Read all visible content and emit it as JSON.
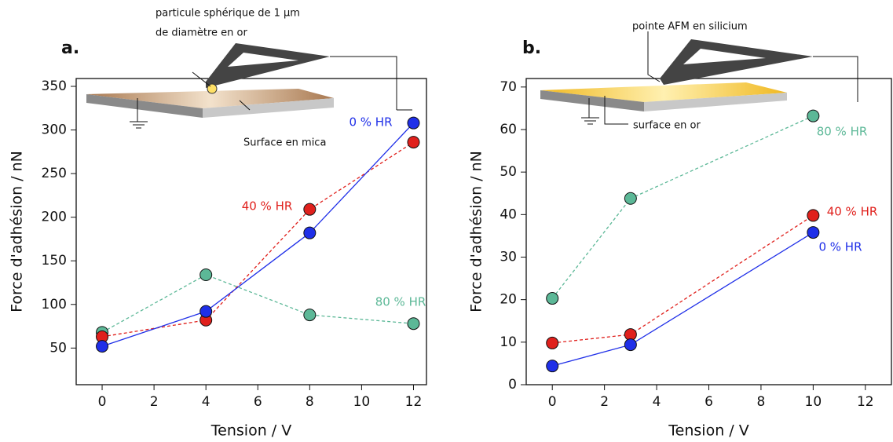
{
  "chart_data": [
    {
      "type": "line",
      "panel_label": "a.",
      "xlabel": "Tension / V",
      "ylabel": "Force d'adhésion / nN",
      "annotations": [
        "particule sphérique de 1 µm",
        "de diamètre en or",
        "Surface en mica"
      ],
      "x": [
        0,
        4,
        8,
        12
      ],
      "xlim": [
        -1,
        12.5
      ],
      "xticks": [
        0,
        2,
        4,
        6,
        8,
        10,
        12
      ],
      "ylim": [
        8,
        359
      ],
      "yticks": [
        50,
        100,
        150,
        200,
        250,
        300,
        350
      ],
      "series": [
        {
          "name": "80 % HR",
          "color": "#5cb897",
          "line_style": "dashed",
          "values": [
            68,
            134,
            88,
            78
          ]
        },
        {
          "name": "40 % HR",
          "color": "#e0201c",
          "line_style": "dashed",
          "values": [
            63,
            82,
            209,
            286
          ]
        },
        {
          "name": "0 % HR",
          "color": "#1f2fe8",
          "line_style": "solid",
          "values": [
            52,
            92,
            182,
            308
          ]
        }
      ]
    },
    {
      "type": "line",
      "panel_label": "b.",
      "xlabel": "Tension / V",
      "ylabel": "Force d'adhésion / nN",
      "annotations": [
        "pointe AFM en silicium",
        "surface en or"
      ],
      "x": [
        0,
        3,
        10
      ],
      "xlim": [
        -1,
        13
      ],
      "xticks": [
        0,
        2,
        4,
        6,
        8,
        10,
        12
      ],
      "ylim": [
        0,
        72
      ],
      "yticks": [
        0,
        10,
        20,
        30,
        40,
        50,
        60,
        70
      ],
      "series": [
        {
          "name": "80 % HR",
          "color": "#5cb897",
          "line_style": "dashed",
          "values": [
            20.3,
            43.8,
            63.2
          ]
        },
        {
          "name": "40 % HR",
          "color": "#e0201c",
          "line_style": "dashed",
          "values": [
            9.8,
            11.8,
            39.8
          ]
        },
        {
          "name": "0 % HR",
          "color": "#1f2fe8",
          "line_style": "solid",
          "values": [
            4.4,
            9.4,
            35.8
          ]
        }
      ]
    }
  ]
}
